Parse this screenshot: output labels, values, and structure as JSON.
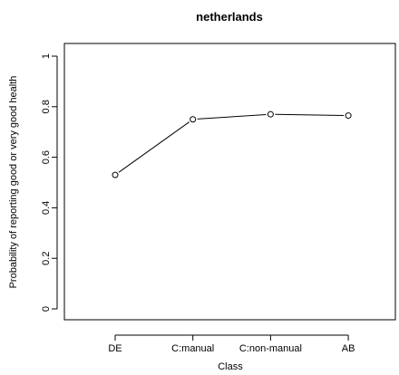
{
  "chart_data": {
    "type": "line",
    "title": "netherlands",
    "xlabel": "Class",
    "ylabel": "Probability of reporting good or very good health",
    "categories": [
      "DE",
      "C:manual",
      "C:non-manual",
      "AB"
    ],
    "values": [
      0.53,
      0.75,
      0.77,
      0.765
    ],
    "yticks": [
      0,
      0.2,
      0.4,
      0.6,
      0.8,
      1
    ],
    "ytick_labels": [
      "0",
      "0.2",
      "0.4",
      "0.6",
      "0.8",
      "1"
    ],
    "ylim": [
      0,
      1
    ],
    "grid": false,
    "legend": "none",
    "marker": "open-circle"
  }
}
